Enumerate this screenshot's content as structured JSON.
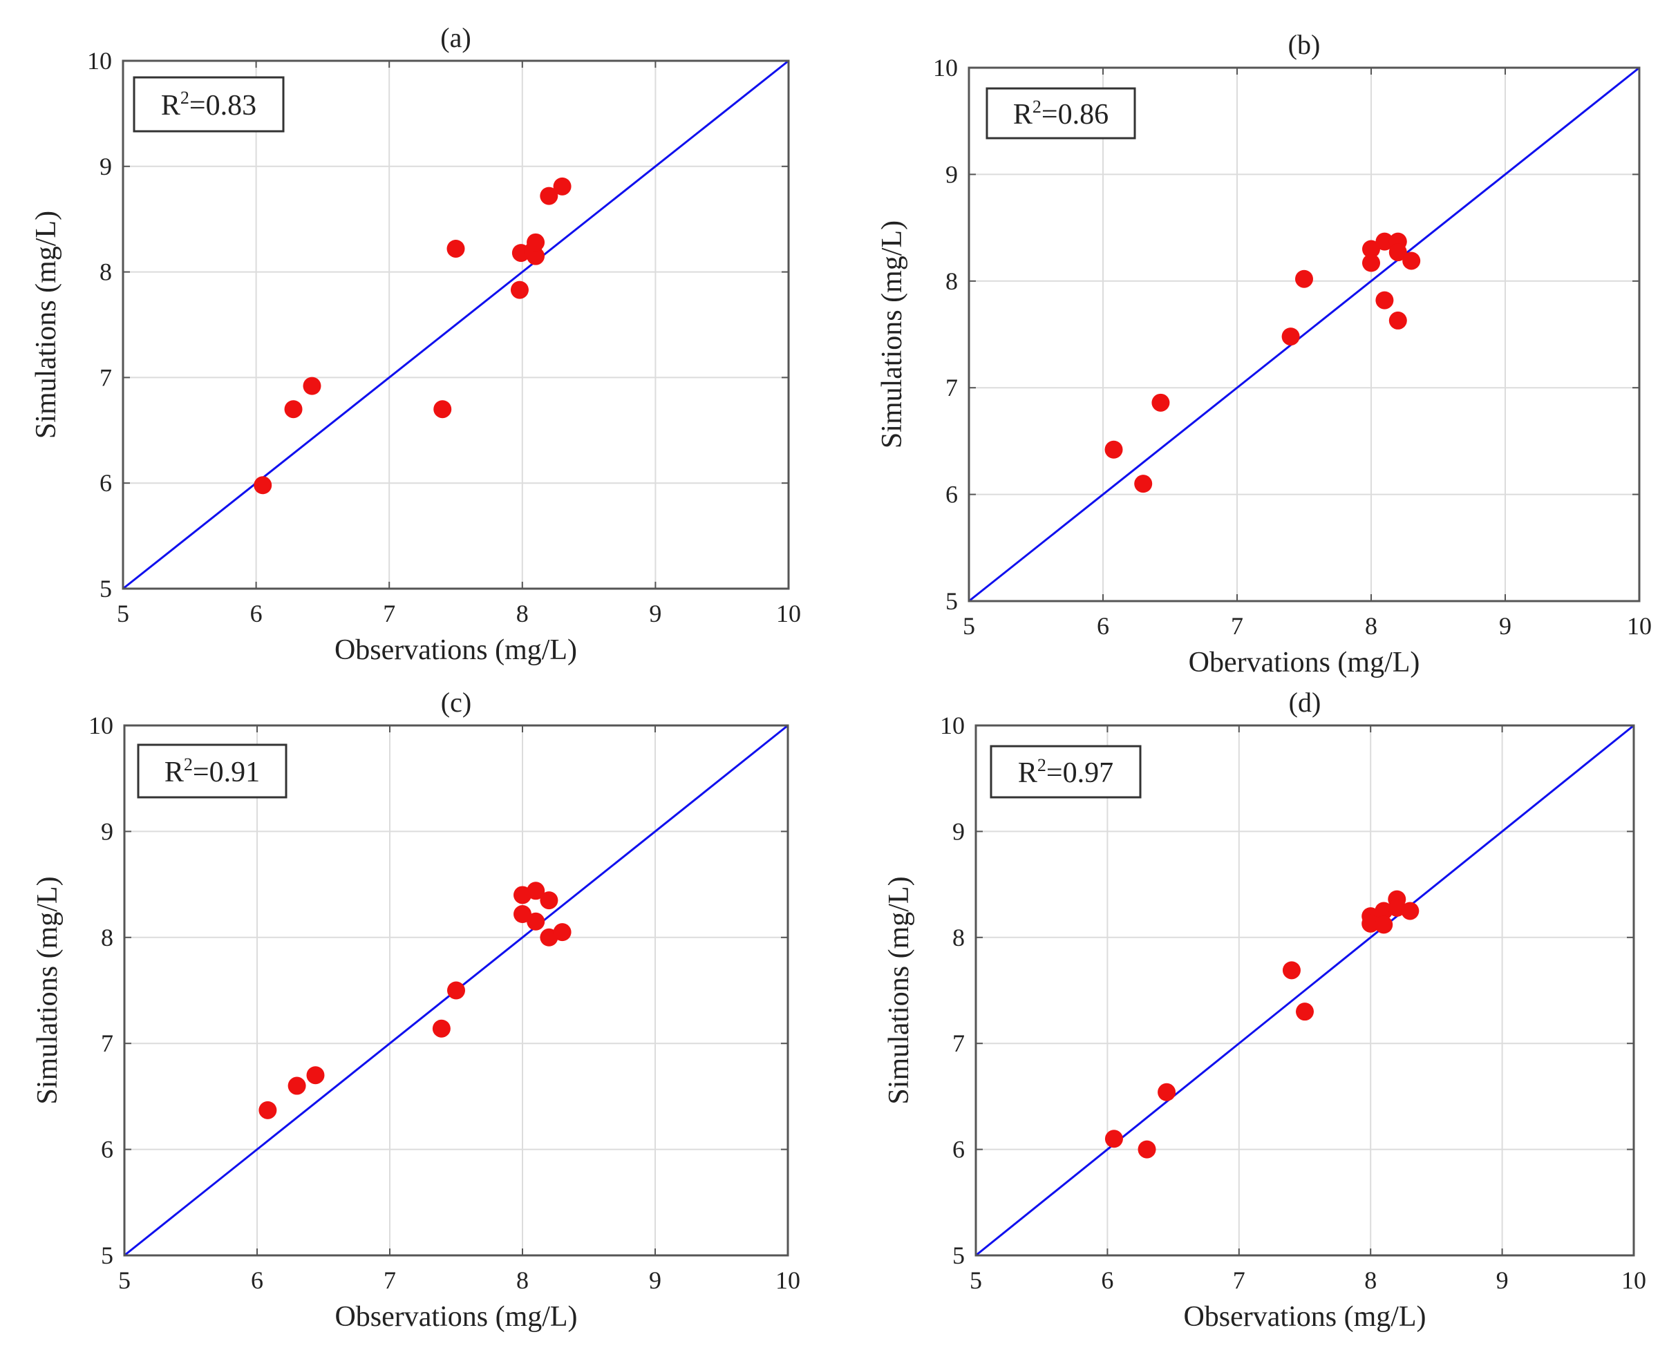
{
  "colors": {
    "line": "#1010ee",
    "marker": "#ee1111",
    "grid": "#dcdcdc",
    "axes": "#555555"
  },
  "chart_data": [
    {
      "type": "scatter",
      "title": "(a)",
      "xlabel": "Observations (mg/L)",
      "ylabel": "Simulations (mg/L)",
      "xlim": [
        5,
        10
      ],
      "ylim": [
        5,
        10
      ],
      "xticks": [
        "5",
        "6",
        "7",
        "8",
        "9",
        "10"
      ],
      "yticks": [
        "5",
        "6",
        "7",
        "8",
        "9",
        "10"
      ],
      "grid": true,
      "r2_prefix": "R",
      "r2_exp": "2",
      "r2_value": "=0.83",
      "reference_line": {
        "name": "1:1 line",
        "x": [
          5,
          10
        ],
        "y": [
          5,
          10
        ]
      },
      "series": [
        {
          "name": "Observed vs Simulated",
          "x": [
            6.05,
            6.28,
            6.42,
            7.4,
            7.5,
            7.98,
            7.99,
            8.08,
            8.1,
            8.1,
            8.2,
            8.3
          ],
          "y": [
            5.98,
            6.7,
            6.92,
            6.7,
            8.22,
            7.83,
            8.18,
            8.2,
            8.15,
            8.28,
            8.72,
            8.81
          ]
        }
      ]
    },
    {
      "type": "scatter",
      "title": "(b)",
      "xlabel": "Obervations (mg/L)",
      "ylabel": "Simulations (mg/L)",
      "xlim": [
        5,
        10
      ],
      "ylim": [
        5,
        10
      ],
      "xticks": [
        "5",
        "6",
        "7",
        "8",
        "9",
        "10"
      ],
      "yticks": [
        "5",
        "6",
        "7",
        "8",
        "9",
        "10"
      ],
      "grid": true,
      "r2_prefix": "R",
      "r2_exp": "2",
      "r2_value": "=0.86",
      "reference_line": {
        "name": "1:1 line",
        "x": [
          5,
          10
        ],
        "y": [
          5,
          10
        ]
      },
      "series": [
        {
          "name": "Observed vs Simulated",
          "x": [
            6.08,
            6.3,
            6.43,
            7.4,
            7.5,
            8.0,
            8.0,
            8.1,
            8.1,
            8.2,
            8.2,
            8.2,
            8.3
          ],
          "y": [
            6.42,
            6.1,
            6.86,
            7.48,
            8.02,
            8.3,
            8.17,
            8.37,
            7.82,
            8.37,
            8.27,
            7.63,
            8.19
          ]
        }
      ]
    },
    {
      "type": "scatter",
      "title": "(c)",
      "xlabel": "Observations (mg/L)",
      "ylabel": "Simulations (mg/L)",
      "xlim": [
        5,
        10
      ],
      "ylim": [
        5,
        10
      ],
      "xticks": [
        "5",
        "6",
        "7",
        "8",
        "9",
        "10"
      ],
      "yticks": [
        "5",
        "6",
        "7",
        "8",
        "9",
        "10"
      ],
      "grid": true,
      "r2_prefix": "R",
      "r2_exp": "2",
      "r2_value": "=0.91",
      "reference_line": {
        "name": "1:1 line",
        "x": [
          5,
          10
        ],
        "y": [
          5,
          10
        ]
      },
      "series": [
        {
          "name": "Observed vs Simulated",
          "x": [
            6.08,
            6.3,
            6.44,
            7.39,
            7.5,
            8.0,
            8.0,
            8.1,
            8.1,
            8.2,
            8.2,
            8.3
          ],
          "y": [
            6.37,
            6.6,
            6.7,
            7.14,
            7.5,
            8.4,
            8.22,
            8.44,
            8.15,
            8.35,
            8.0,
            8.05
          ]
        }
      ]
    },
    {
      "type": "scatter",
      "title": "(d)",
      "xlabel": "Observations (mg/L)",
      "ylabel": "Simulations (mg/L)",
      "xlim": [
        5,
        10
      ],
      "ylim": [
        5,
        10
      ],
      "xticks": [
        "5",
        "6",
        "7",
        "8",
        "9",
        "10"
      ],
      "yticks": [
        "5",
        "6",
        "7",
        "8",
        "9",
        "10"
      ],
      "grid": true,
      "r2_prefix": "R",
      "r2_exp": "2",
      "r2_value": "=0.97",
      "reference_line": {
        "name": "1:1 line",
        "x": [
          5,
          10
        ],
        "y": [
          5,
          10
        ]
      },
      "series": [
        {
          "name": "Observed vs Simulated",
          "x": [
            6.05,
            6.3,
            6.45,
            7.4,
            7.5,
            8.0,
            8.0,
            8.1,
            8.1,
            8.2,
            8.2,
            8.3
          ],
          "y": [
            6.1,
            6.0,
            6.54,
            7.69,
            7.3,
            8.2,
            8.13,
            8.25,
            8.12,
            8.36,
            8.28,
            8.25
          ]
        }
      ]
    }
  ]
}
